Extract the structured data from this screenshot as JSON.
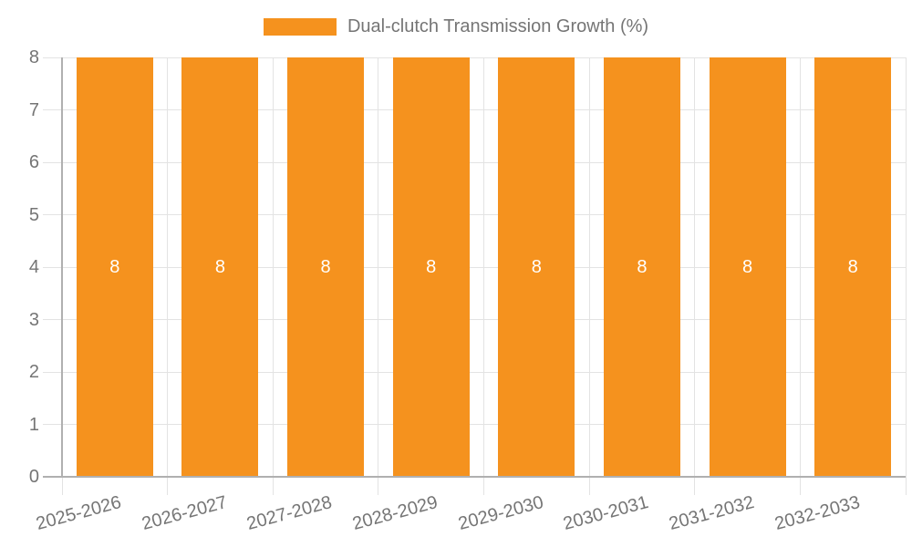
{
  "legend": {
    "label": "Dual-clutch Transmission Growth (%)"
  },
  "chart_data": {
    "type": "bar",
    "title": "Dual-clutch Transmission Growth (%)",
    "series_name": "Dual-clutch Transmission Growth (%)",
    "categories": [
      "2025-2026",
      "2026-2027",
      "2027-2028",
      "2028-2029",
      "2029-2030",
      "2030-2031",
      "2031-2032",
      "2032-2033"
    ],
    "values": [
      8,
      8,
      8,
      8,
      8,
      8,
      8,
      8
    ],
    "bar_value_labels": [
      "8",
      "8",
      "8",
      "8",
      "8",
      "8",
      "8",
      "8"
    ],
    "xlabel": "",
    "ylabel": "",
    "ylim": [
      0,
      8
    ],
    "yticks": [
      "0",
      "1",
      "2",
      "3",
      "4",
      "5",
      "6",
      "7",
      "8"
    ],
    "grid": true,
    "legend_position": "top-center",
    "colors": {
      "bar": "#F5921E",
      "gridline": "#e3e3e3",
      "axis_line": "#b0b0b0",
      "tick_text": "#757575",
      "bar_label_text": "#ffffff",
      "background": "#ffffff"
    }
  }
}
